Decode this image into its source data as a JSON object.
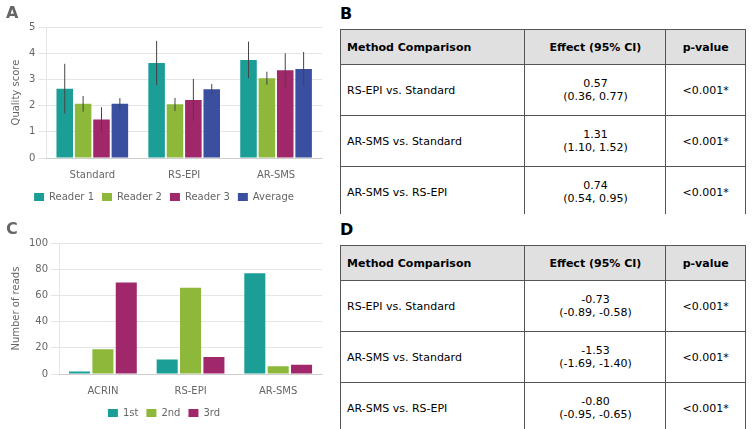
{
  "chart_data": [
    {
      "type": "bar",
      "title": "A",
      "categories": [
        "Standard",
        "RS-EPI",
        "AR-SMS"
      ],
      "series": [
        {
          "name": "Reader 1",
          "color": "#1a9e96",
          "values": [
            2.65,
            3.63,
            3.75
          ],
          "errors": [
            0.95,
            0.85,
            0.7
          ]
        },
        {
          "name": "Reader 2",
          "color": "#8db83a",
          "values": [
            2.07,
            2.05,
            3.05
          ],
          "errors": [
            0.3,
            0.25,
            0.25
          ]
        },
        {
          "name": "Reader 3",
          "color": "#a0276a",
          "values": [
            1.47,
            2.22,
            3.35
          ],
          "errors": [
            0.47,
            0.8,
            0.65
          ]
        },
        {
          "name": "Average",
          "color": "#3b4fa0",
          "values": [
            2.07,
            2.63,
            3.4
          ],
          "errors": [
            0.22,
            0.2,
            0.65
          ]
        }
      ],
      "ylabel": "Quality score",
      "ylim": [
        0,
        5
      ],
      "yticks": [
        0,
        1,
        2,
        3,
        4,
        5
      ],
      "grid": true,
      "legend": "bottom"
    },
    {
      "type": "table",
      "title": "B",
      "color": "#e0e0e0",
      "headers": [
        "Method Comparison",
        "Effect (95% CI)",
        "p-value"
      ],
      "rows": [
        [
          "RS-EPI vs. Standard",
          "0.57\n(0.36, 0.77)",
          "<0.001*"
        ],
        [
          "AR-SMS vs. Standard",
          "1.31\n(1.10, 1.52)",
          "<0.001*"
        ],
        [
          "AR-SMS vs. RS-EPI",
          "0.74\n(0.54, 0.95)",
          "<0.001*"
        ]
      ]
    },
    {
      "type": "bar",
      "title": "C",
      "categories": [
        "ACRIN",
        "RS-EPI",
        "AR-SMS"
      ],
      "series": [
        {
          "name": "1st",
          "color": "#1a9e96",
          "values": [
            2,
            11,
            77
          ]
        },
        {
          "name": "2nd",
          "color": "#8db83a",
          "values": [
            19,
            66,
            6
          ]
        },
        {
          "name": "3rd",
          "color": "#a0276a",
          "values": [
            70,
            13,
            7
          ]
        }
      ],
      "ylabel": "Number of reads",
      "ylim": [
        0,
        100
      ],
      "yticks": [
        0,
        20,
        40,
        60,
        80,
        100
      ],
      "grid": true,
      "legend": "bottom"
    },
    {
      "type": "table",
      "title": "D",
      "color": "#e0e0e0",
      "headers": [
        "Method Comparison",
        "Effect (95% CI)",
        "p-value"
      ],
      "rows": [
        [
          "RS-EPI vs. Standard",
          "-0.73\n(-0.89, -0.58)",
          "<0.001*"
        ],
        [
          "AR-SMS vs. Standard",
          "-1.53\n(-1.69, -1.40)",
          "<0.001*"
        ],
        [
          "AR-SMS vs. RS-EPI",
          "-0.80\n(-0.95, -0.65)",
          "<0.001*"
        ]
      ]
    }
  ]
}
